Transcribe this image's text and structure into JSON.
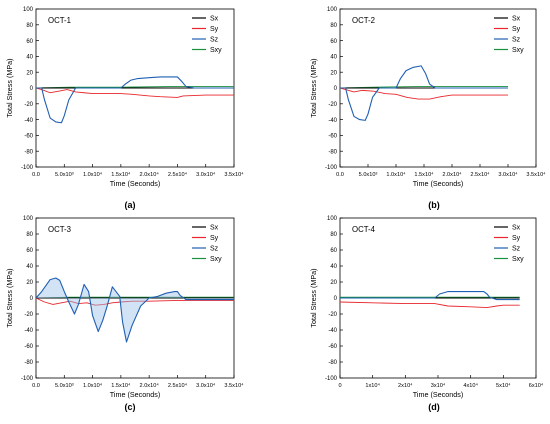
{
  "legend_items": [
    {
      "name": "Sx",
      "color": "#000000"
    },
    {
      "name": "Sy",
      "color": "#e8262b"
    },
    {
      "name": "Sz",
      "color": "#1f5fb3"
    },
    {
      "name": "Sxy",
      "color": "#1a8f3c"
    }
  ],
  "chart_data": [
    {
      "type": "line",
      "panel_label": "(a)",
      "annotation": "OCT-1",
      "xlabel": "Time (Seconds)",
      "ylabel": "Total Stress (MPa)",
      "xlim": [
        0,
        35000
      ],
      "ylim": [
        -100,
        100
      ],
      "x_ticks": [
        0,
        5000,
        10000,
        15000,
        20000,
        25000,
        30000,
        35000
      ],
      "x_tick_labels": [
        "0.0",
        "5.0x10³",
        "1.0x10⁴",
        "1.5x10⁴",
        "2.0x10⁴",
        "2.5x10⁴",
        "3.0x10⁴",
        "3.5x10⁴"
      ],
      "y_ticks": [
        -100,
        -80,
        -60,
        -40,
        -20,
        0,
        20,
        40,
        60,
        80,
        100
      ],
      "legend_position": "top-right",
      "fill_sz": false,
      "series": [
        {
          "name": "Sx",
          "x": [
            0,
            35000
          ],
          "y": [
            0,
            0
          ]
        },
        {
          "name": "Sy",
          "x": [
            0,
            1000,
            2500,
            4000,
            5500,
            7000,
            8500,
            10000,
            15000,
            17000,
            20000,
            22000,
            25000,
            26000,
            30000,
            35000
          ],
          "y": [
            0,
            -2,
            -6,
            -4,
            -2,
            -5,
            -6,
            -7,
            -7,
            -8,
            -10,
            -11,
            -12,
            -10,
            -9,
            -9
          ]
        },
        {
          "name": "Sz",
          "x": [
            0,
            1000,
            1500,
            2500,
            3500,
            4500,
            5000,
            5800,
            7000,
            15000,
            15800,
            16800,
            18000,
            20000,
            22000,
            25000,
            25800,
            26500,
            28000,
            35000
          ],
          "y": [
            0,
            0,
            -15,
            -38,
            -43,
            -44,
            -35,
            -15,
            0,
            0,
            5,
            10,
            12,
            13,
            14,
            14,
            8,
            2,
            0,
            0
          ]
        },
        {
          "name": "Sxy",
          "x": [
            0,
            6000,
            15000,
            25000,
            35000
          ],
          "y": [
            0,
            1,
            1,
            2,
            2
          ]
        }
      ]
    },
    {
      "type": "line",
      "panel_label": "(b)",
      "annotation": "OCT-2",
      "xlabel": "Time (Seconds)",
      "ylabel": "Total Stress (MPa)",
      "xlim": [
        0,
        35000
      ],
      "ylim": [
        -100,
        100
      ],
      "x_ticks": [
        0,
        5000,
        10000,
        15000,
        20000,
        25000,
        30000,
        35000
      ],
      "x_tick_labels": [
        "0.0",
        "5.0x10³",
        "1.0x10⁴",
        "1.5x10⁴",
        "2.0x10⁴",
        "2.5x10⁴",
        "3.0x10⁴",
        "3.5x10⁴"
      ],
      "y_ticks": [
        -100,
        -80,
        -60,
        -40,
        -20,
        0,
        20,
        40,
        60,
        80,
        100
      ],
      "legend_position": "top-right",
      "fill_sz": false,
      "series": [
        {
          "name": "Sx",
          "x": [
            0,
            30000
          ],
          "y": [
            0,
            0
          ]
        },
        {
          "name": "Sy",
          "x": [
            0,
            1000,
            2500,
            4000,
            6000,
            8000,
            10000,
            12000,
            14000,
            16000,
            18000,
            20000,
            25000,
            30000
          ],
          "y": [
            0,
            -2,
            -5,
            -3,
            -4,
            -7,
            -8,
            -12,
            -14,
            -14,
            -11,
            -9,
            -9,
            -9
          ]
        },
        {
          "name": "Sz",
          "x": [
            0,
            1000,
            1500,
            2500,
            3500,
            4500,
            5000,
            5800,
            7000,
            10000,
            10800,
            11800,
            13000,
            14500,
            15300,
            16000,
            17000,
            30000
          ],
          "y": [
            0,
            0,
            -15,
            -36,
            -40,
            -41,
            -33,
            -12,
            0,
            0,
            12,
            22,
            26,
            28,
            18,
            5,
            0,
            0
          ]
        },
        {
          "name": "Sxy",
          "x": [
            0,
            6000,
            15000,
            30000
          ],
          "y": [
            0,
            1,
            2,
            2
          ]
        }
      ]
    },
    {
      "type": "line",
      "panel_label": "(c)",
      "annotation": "OCT-3",
      "xlabel": "Time (Seconds)",
      "ylabel": "Total Stress (MPa)",
      "xlim": [
        0,
        35000
      ],
      "ylim": [
        -100,
        100
      ],
      "x_ticks": [
        0,
        5000,
        10000,
        15000,
        20000,
        25000,
        30000,
        35000
      ],
      "x_tick_labels": [
        "0.0",
        "5.0x10³",
        "1.0x10⁴",
        "1.5x10⁴",
        "2.0x10⁴",
        "2.5x10⁴",
        "3.0x10⁴",
        "3.5x10⁴"
      ],
      "y_ticks": [
        -100,
        -80,
        -60,
        -40,
        -20,
        0,
        20,
        40,
        60,
        80,
        100
      ],
      "legend_position": "top-right",
      "fill_sz": true,
      "series": [
        {
          "name": "Sx",
          "x": [
            0,
            35000
          ],
          "y": [
            0,
            0
          ]
        },
        {
          "name": "Sy",
          "x": [
            0,
            1500,
            3000,
            4500,
            6000,
            7500,
            9000,
            10500,
            12000,
            13500,
            15000,
            17000,
            20000,
            25000,
            35000
          ],
          "y": [
            0,
            -5,
            -8,
            -6,
            -4,
            -7,
            -6,
            -9,
            -8,
            -6,
            -5,
            -4,
            -4,
            -3,
            -3
          ]
        },
        {
          "name": "Sz",
          "x": [
            0,
            1000,
            2500,
            3500,
            4200,
            5000,
            5800,
            6800,
            7500,
            8500,
            9300,
            10000,
            11000,
            11800,
            12500,
            13500,
            14800,
            15300,
            16000,
            17000,
            18500,
            20000,
            21500,
            23000,
            24500,
            25000,
            25500,
            26500,
            35000
          ],
          "y": [
            0,
            8,
            23,
            25,
            22,
            8,
            -5,
            -20,
            -8,
            17,
            8,
            -22,
            -42,
            -28,
            -12,
            14,
            2,
            -30,
            -55,
            -34,
            -10,
            0,
            2,
            6,
            8,
            8,
            3,
            -2,
            -2
          ]
        },
        {
          "name": "Sxy",
          "x": [
            0,
            6000,
            15000,
            35000
          ],
          "y": [
            0,
            1,
            1,
            1
          ]
        }
      ]
    },
    {
      "type": "line",
      "panel_label": "(d)",
      "annotation": "OCT-4",
      "xlabel": "Time (Seconds)",
      "ylabel": "Total Stress (MPa)",
      "xlim": [
        0,
        60000
      ],
      "ylim": [
        -100,
        100
      ],
      "x_ticks": [
        0,
        10000,
        20000,
        30000,
        40000,
        50000,
        60000
      ],
      "x_tick_labels": [
        "0",
        "1x10⁴",
        "2x10⁴",
        "3x10⁴",
        "4x10⁴",
        "5x10⁴",
        "6x10⁴"
      ],
      "y_ticks": [
        -100,
        -80,
        -60,
        -40,
        -20,
        0,
        20,
        40,
        60,
        80,
        100
      ],
      "legend_position": "top-right",
      "fill_sz": false,
      "series": [
        {
          "name": "Sx",
          "x": [
            0,
            55000
          ],
          "y": [
            0,
            0
          ]
        },
        {
          "name": "Sy",
          "x": [
            0,
            10000,
            20000,
            29000,
            33000,
            40000,
            45000,
            48000,
            50000,
            55000
          ],
          "y": [
            -5,
            -6,
            -7,
            -7,
            -10,
            -11,
            -12,
            -10,
            -9,
            -9
          ]
        },
        {
          "name": "Sz",
          "x": [
            0,
            10000,
            29000,
            30500,
            33000,
            40000,
            44000,
            45000,
            45800,
            48000,
            55000
          ],
          "y": [
            0,
            0,
            0,
            5,
            8,
            8,
            8,
            5,
            1,
            -2,
            -2
          ]
        },
        {
          "name": "Sxy",
          "x": [
            0,
            30000,
            55000
          ],
          "y": [
            1,
            1,
            1
          ]
        }
      ]
    }
  ]
}
